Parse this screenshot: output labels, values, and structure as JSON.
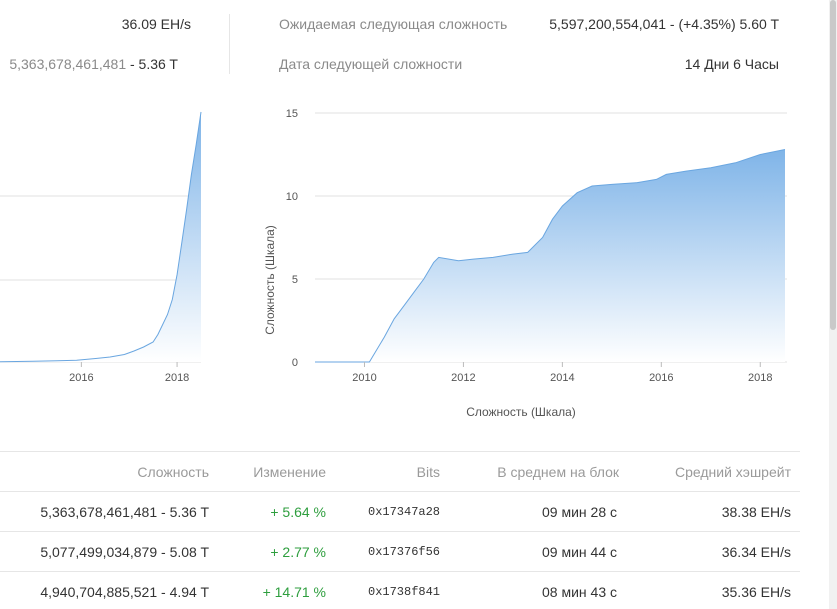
{
  "stats": {
    "hashrate_value": "36.09 EH/s",
    "difficulty_value": "5,363,678,461,481",
    "difficulty_short": " - 5.36 T",
    "next_difficulty_label": "Ожидаемая следующая сложность",
    "next_difficulty_value": "5,597,200,554,041 - (+4.35%) 5.60 T",
    "next_date_label": "Дата следующей сложности",
    "next_date_value": "14 Дни 6 Часы"
  },
  "colors": {
    "area_top": "#7fb4e8",
    "area_bottom": "#ffffff",
    "line": "#6aa6e0",
    "grid": "#e2e2e2",
    "positive": "#2e9e3e"
  },
  "chart_data": [
    {
      "type": "area",
      "title": "",
      "xlabel": "",
      "ylabel": "",
      "x_ticks": [
        "2016",
        "2018"
      ],
      "grid": true,
      "x": [
        2014.3,
        2015.0,
        2015.5,
        2015.9,
        2016.3,
        2016.6,
        2016.9,
        2017.1,
        2017.3,
        2017.5,
        2017.6,
        2017.7,
        2017.8,
        2017.9,
        2018.0,
        2018.1,
        2018.2,
        2018.3,
        2018.4,
        2018.5
      ],
      "y": [
        0.05,
        0.15,
        0.25,
        0.35,
        0.7,
        1.0,
        1.5,
        2.2,
        3.0,
        4.0,
        5.5,
        7.5,
        9.5,
        12.5,
        17.5,
        24.0,
        30.5,
        37.5,
        43.5,
        50.0
      ]
    },
    {
      "type": "area",
      "title": "",
      "xlabel": "Сложность (Шкала)",
      "ylabel": "Сложность (Шкала)",
      "ylim": [
        0,
        15
      ],
      "y_ticks": [
        "0",
        "5",
        "10",
        "15"
      ],
      "x_ticks": [
        "2010",
        "2012",
        "2014",
        "2016",
        "2018"
      ],
      "xlim": [
        2009.0,
        2018.5
      ],
      "grid": true,
      "x": [
        2009.0,
        2010.1,
        2010.4,
        2010.6,
        2010.8,
        2011.0,
        2011.2,
        2011.4,
        2011.5,
        2011.9,
        2012.2,
        2012.6,
        2013.0,
        2013.3,
        2013.6,
        2013.8,
        2014.0,
        2014.3,
        2014.6,
        2015.0,
        2015.5,
        2015.9,
        2016.1,
        2016.5,
        2017.0,
        2017.5,
        2018.0,
        2018.5
      ],
      "y": [
        0.0,
        0.0,
        1.5,
        2.6,
        3.4,
        4.2,
        5.0,
        6.0,
        6.3,
        6.1,
        6.2,
        6.3,
        6.5,
        6.6,
        7.5,
        8.6,
        9.4,
        10.2,
        10.6,
        10.7,
        10.8,
        11.0,
        11.3,
        11.5,
        11.7,
        12.0,
        12.5,
        12.8
      ]
    }
  ],
  "table": {
    "headers": [
      "Сложность",
      "Изменение",
      "Bits",
      "В среднем на блок",
      "Средний хэшрейт"
    ],
    "rows": [
      {
        "difficulty": "5,363,678,461,481 - 5.36 T",
        "change": "+ 5.64 %",
        "bits": "0x17347a28",
        "avg_block": "09 мин 28 с",
        "hashrate": "38.38 EH/s"
      },
      {
        "difficulty": "5,077,499,034,879 - 5.08 T",
        "change": "+ 2.77 %",
        "bits": "0x17376f56",
        "avg_block": "09 мин 44 с",
        "hashrate": "36.34 EH/s"
      },
      {
        "difficulty": "4,940,704,885,521 - 4.94 T",
        "change": "+ 14.71 %",
        "bits": "0x1738f841",
        "avg_block": "08 мин 43 с",
        "hashrate": "35.36 EH/s"
      }
    ]
  }
}
